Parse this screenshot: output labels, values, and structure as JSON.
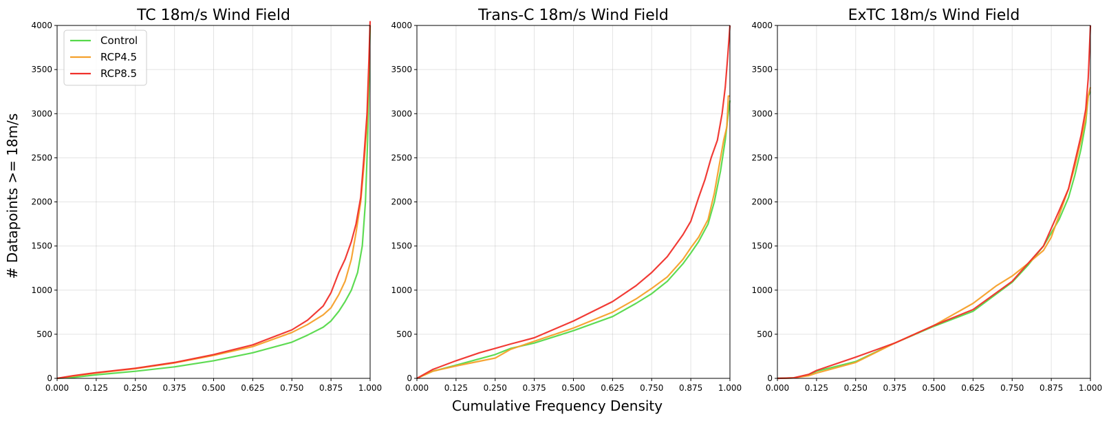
{
  "figure": {
    "ylabel": "# Datapoints >= 18m/s",
    "xlabel": "Cumulative Frequency Density"
  },
  "legend": {
    "placement": "top-left",
    "entries": [
      {
        "name": "Control",
        "color": "#55d94a"
      },
      {
        "name": "RCP4.5",
        "color": "#f5a02a"
      },
      {
        "name": "RCP8.5",
        "color": "#f0302a"
      }
    ]
  },
  "chart_data": [
    {
      "type": "line",
      "title": "TC 18m/s Wind Field",
      "xlim": [
        0,
        1
      ],
      "ylim": [
        0,
        4000
      ],
      "xticks": [
        "0.000",
        "0.125",
        "0.250",
        "0.375",
        "0.500",
        "0.625",
        "0.750",
        "0.875",
        "1.000"
      ],
      "yticks": [
        "0",
        "500",
        "1000",
        "1500",
        "2000",
        "2500",
        "3000",
        "3500",
        "4000"
      ],
      "grid": true,
      "series": [
        {
          "name": "Control",
          "color": "#55d94a",
          "x": [
            0,
            0.05,
            0.125,
            0.25,
            0.375,
            0.5,
            0.625,
            0.75,
            0.8,
            0.85,
            0.875,
            0.9,
            0.92,
            0.94,
            0.96,
            0.975,
            0.985,
            0.992,
            0.996,
            1.0
          ],
          "y": [
            0,
            10,
            40,
            80,
            130,
            200,
            290,
            410,
            490,
            580,
            650,
            760,
            870,
            1000,
            1200,
            1500,
            2000,
            2700,
            3300,
            4000
          ]
        },
        {
          "name": "RCP4.5",
          "color": "#f5a02a",
          "x": [
            0,
            0.05,
            0.125,
            0.25,
            0.375,
            0.5,
            0.625,
            0.75,
            0.8,
            0.85,
            0.875,
            0.9,
            0.92,
            0.94,
            0.955,
            0.97,
            0.98,
            0.99,
            0.996,
            1.0
          ],
          "y": [
            0,
            25,
            60,
            110,
            175,
            260,
            360,
            520,
            610,
            720,
            800,
            950,
            1100,
            1350,
            1650,
            2000,
            2400,
            2900,
            3500,
            4000
          ]
        },
        {
          "name": "RCP8.5",
          "color": "#f0302a",
          "x": [
            0,
            0.05,
            0.125,
            0.25,
            0.375,
            0.5,
            0.625,
            0.75,
            0.8,
            0.85,
            0.875,
            0.9,
            0.92,
            0.94,
            0.955,
            0.97,
            0.98,
            0.99,
            0.996,
            1.0
          ],
          "y": [
            0,
            30,
            65,
            115,
            180,
            270,
            380,
            550,
            660,
            820,
            970,
            1200,
            1350,
            1550,
            1750,
            2050,
            2500,
            3000,
            3600,
            4050
          ]
        }
      ]
    },
    {
      "type": "line",
      "title": "Trans-C 18m/s Wind Field",
      "xlim": [
        0,
        1
      ],
      "ylim": [
        0,
        4000
      ],
      "xticks": [
        "0.000",
        "0.125",
        "0.250",
        "0.375",
        "0.500",
        "0.625",
        "0.750",
        "0.875",
        "1.000"
      ],
      "yticks": [
        "0",
        "500",
        "1000",
        "1500",
        "2000",
        "2500",
        "3000",
        "3500",
        "4000"
      ],
      "grid": true,
      "series": [
        {
          "name": "Control",
          "color": "#55d94a",
          "x": [
            0,
            0.05,
            0.125,
            0.25,
            0.3,
            0.375,
            0.5,
            0.625,
            0.7,
            0.75,
            0.8,
            0.85,
            0.875,
            0.9,
            0.93,
            0.95,
            0.97,
            0.985,
            0.993,
            1.0
          ],
          "y": [
            0,
            80,
            150,
            270,
            340,
            400,
            540,
            700,
            850,
            960,
            1100,
            1300,
            1420,
            1550,
            1750,
            2000,
            2350,
            2700,
            2950,
            3150
          ]
        },
        {
          "name": "RCP4.5",
          "color": "#f5a02a",
          "x": [
            0,
            0.05,
            0.125,
            0.25,
            0.3,
            0.375,
            0.5,
            0.625,
            0.7,
            0.75,
            0.8,
            0.85,
            0.875,
            0.9,
            0.93,
            0.95,
            0.965,
            0.98,
            0.99,
            0.995,
            1.0
          ],
          "y": [
            0,
            80,
            140,
            230,
            330,
            420,
            570,
            750,
            900,
            1020,
            1150,
            1350,
            1480,
            1600,
            1800,
            2100,
            2400,
            2700,
            2850,
            3200,
            3200
          ]
        },
        {
          "name": "RCP8.5",
          "color": "#f0302a",
          "x": [
            0,
            0.05,
            0.125,
            0.2,
            0.25,
            0.3,
            0.375,
            0.5,
            0.625,
            0.7,
            0.75,
            0.8,
            0.85,
            0.875,
            0.9,
            0.92,
            0.94,
            0.96,
            0.975,
            0.985,
            0.993,
            1.0
          ],
          "y": [
            0,
            100,
            200,
            290,
            340,
            390,
            460,
            650,
            870,
            1050,
            1200,
            1380,
            1630,
            1780,
            2050,
            2250,
            2500,
            2700,
            3000,
            3300,
            3650,
            4000
          ]
        }
      ]
    },
    {
      "type": "line",
      "title": "ExTC 18m/s Wind Field",
      "xlim": [
        0,
        1
      ],
      "ylim": [
        0,
        4000
      ],
      "xticks": [
        "0.000",
        "0.125",
        "0.250",
        "0.375",
        "0.500",
        "0.625",
        "0.750",
        "0.875",
        "1.000"
      ],
      "yticks": [
        "0",
        "500",
        "1000",
        "1500",
        "2000",
        "2500",
        "3000",
        "3500",
        "4000"
      ],
      "grid": true,
      "series": [
        {
          "name": "Control",
          "color": "#55d94a",
          "x": [
            0,
            0.05,
            0.1,
            0.125,
            0.25,
            0.375,
            0.5,
            0.625,
            0.75,
            0.8,
            0.85,
            0.875,
            0.9,
            0.93,
            0.95,
            0.97,
            0.985,
            0.993,
            1.0
          ],
          "y": [
            0,
            5,
            40,
            80,
            190,
            400,
            590,
            760,
            1090,
            1280,
            1500,
            1650,
            1800,
            2050,
            2300,
            2600,
            2900,
            3200,
            3250
          ]
        },
        {
          "name": "RCP4.5",
          "color": "#f5a02a",
          "x": [
            0,
            0.05,
            0.1,
            0.125,
            0.25,
            0.375,
            0.5,
            0.625,
            0.7,
            0.75,
            0.8,
            0.85,
            0.875,
            0.9,
            0.93,
            0.95,
            0.97,
            0.985,
            0.993,
            1.0
          ],
          "y": [
            0,
            5,
            30,
            60,
            180,
            400,
            600,
            850,
            1050,
            1160,
            1300,
            1450,
            1600,
            1850,
            2150,
            2400,
            2700,
            2950,
            3200,
            3300
          ]
        },
        {
          "name": "RCP8.5",
          "color": "#f0302a",
          "x": [
            0,
            0.05,
            0.1,
            0.125,
            0.25,
            0.375,
            0.5,
            0.625,
            0.75,
            0.8,
            0.85,
            0.875,
            0.9,
            0.93,
            0.95,
            0.97,
            0.985,
            0.993,
            1.0
          ],
          "y": [
            0,
            5,
            45,
            90,
            240,
            400,
            600,
            780,
            1100,
            1300,
            1500,
            1700,
            1900,
            2150,
            2450,
            2750,
            3050,
            3400,
            4000
          ]
        }
      ]
    }
  ]
}
